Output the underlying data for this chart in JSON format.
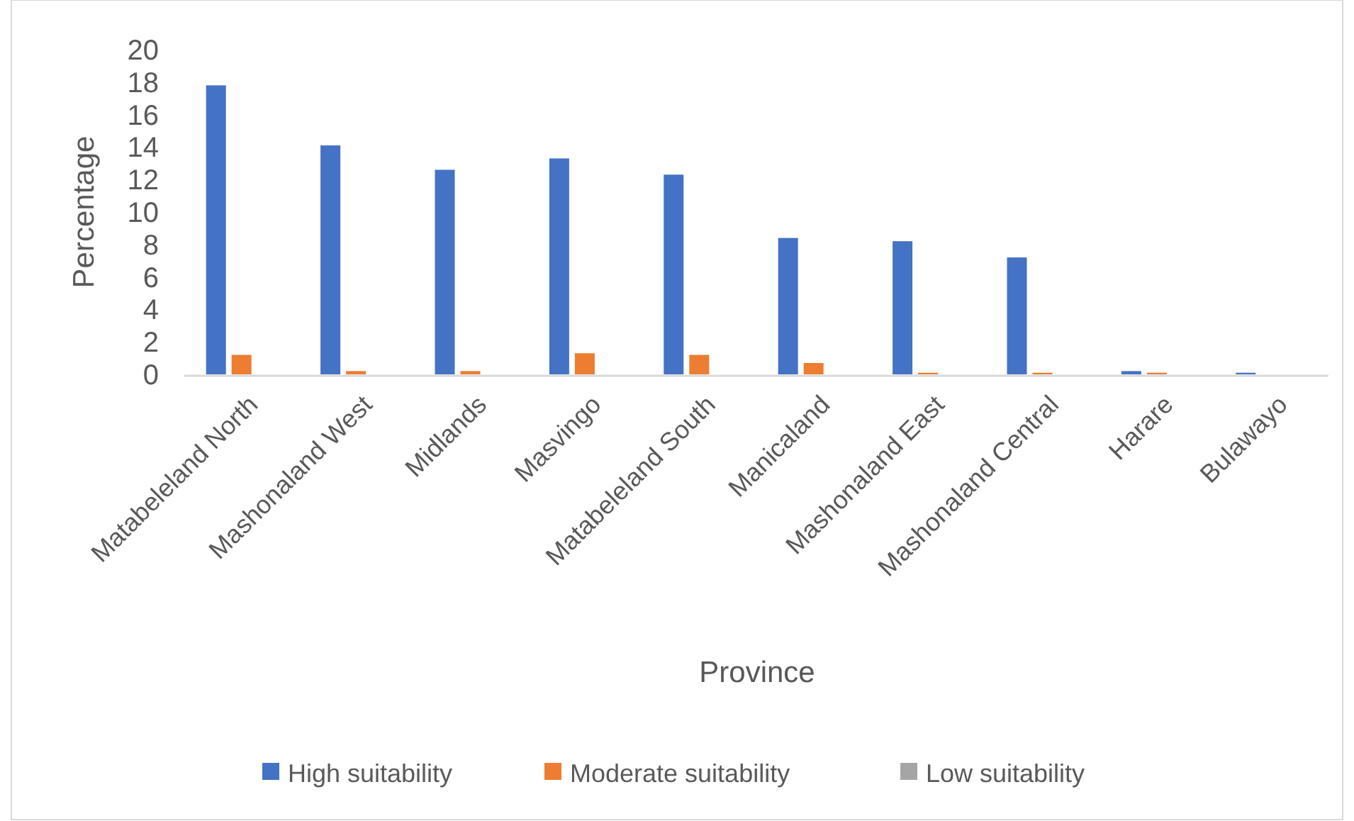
{
  "chart_data": {
    "type": "bar",
    "xlabel": "Province",
    "ylabel": "Percentage",
    "categories": [
      "Matabeleland North",
      "Mashonaland West",
      "Midlands",
      "Masvingo",
      "Matabeleland South",
      "Manicaland",
      "Mashonaland East",
      "Mashonaland Central",
      "Harare",
      "Bulawayo"
    ],
    "series": [
      {
        "name": "High suitability",
        "color": "#4472c4",
        "values": [
          17.8,
          14.1,
          12.6,
          13.3,
          12.3,
          8.4,
          8.2,
          7.2,
          0.2,
          0.1
        ]
      },
      {
        "name": "Moderate suitability",
        "color": "#ed7d31",
        "values": [
          1.2,
          0.2,
          0.2,
          1.3,
          1.2,
          0.7,
          0.1,
          0.1,
          0.1,
          0
        ]
      },
      {
        "name": "Low suitability",
        "color": "#a5a5a5",
        "values": [
          0,
          0,
          0,
          0,
          0,
          0,
          0,
          0,
          0,
          0
        ]
      }
    ],
    "ylim": [
      0,
      20
    ],
    "yticks": [
      0,
      2,
      4,
      6,
      8,
      10,
      12,
      14,
      16,
      18,
      20
    ],
    "grid": false,
    "legend": "bottom"
  }
}
